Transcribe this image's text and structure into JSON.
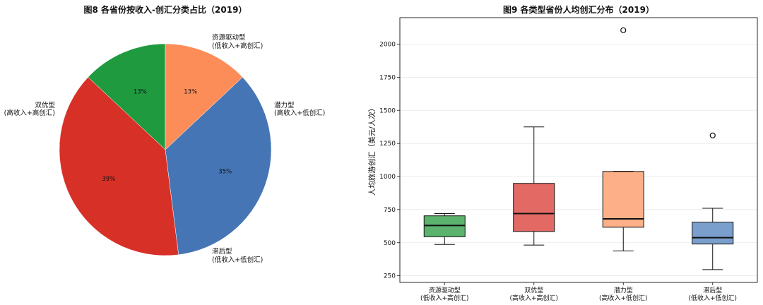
{
  "chart_data": [
    {
      "type": "pie",
      "title": "图8  各省份按收入-创汇分类占比（2019）",
      "start_angle_deg": 90,
      "direction": "counterclockwise",
      "slices": [
        {
          "label_line1": "资源驱动型",
          "label_line2": "(低收入+高创汇)",
          "pct_label": "13%",
          "value": 13,
          "color": "#1f9a3f"
        },
        {
          "label_line1": "双优型",
          "label_line2": "(高收入+高创汇)",
          "pct_label": "39%",
          "value": 39,
          "color": "#d73027"
        },
        {
          "label_line1": "滞后型",
          "label_line2": "(低收入+低创汇)",
          "pct_label": "35%",
          "value": 35,
          "color": "#4575b4"
        },
        {
          "label_line1": "潜力型",
          "label_line2": "(高收入+低创汇)",
          "pct_label": "13%",
          "value": 13,
          "color": "#fc8d59"
        }
      ]
    },
    {
      "type": "box",
      "title": "图9  各类型省份人均创汇分布（2019）",
      "ylabel": "人均旅游创汇（美元/人次）",
      "ylim": [
        200,
        2200
      ],
      "yticks": [
        250,
        500,
        750,
        1000,
        1250,
        1500,
        1750,
        2000
      ],
      "grid": "y",
      "boxes": [
        {
          "label_line1": "资源驱动型",
          "label_line2": "(低收入+高创汇)",
          "color": "#5cb36e",
          "whisker_low": 487,
          "q1": 545,
          "median": 630,
          "q3": 703,
          "whisker_high": 720,
          "outliers": []
        },
        {
          "label_line1": "双优型",
          "label_line2": "(高收入+高创汇)",
          "color": "#e36a64",
          "whisker_low": 482,
          "q1": 585,
          "median": 720,
          "q3": 948,
          "whisker_high": 1375,
          "outliers": []
        },
        {
          "label_line1": "潜力型",
          "label_line2": "(高收入+低创汇)",
          "color": "#fdb088",
          "whisker_low": 438,
          "q1": 617,
          "median": 680,
          "q3": 1038,
          "whisker_high": 1040,
          "outliers": [
            2105
          ]
        },
        {
          "label_line1": "滞后型",
          "label_line2": "(低收入+低创汇)",
          "color": "#7b9fcc",
          "whisker_low": 297,
          "q1": 490,
          "median": 538,
          "q3": 655,
          "whisker_high": 760,
          "outliers": [
            1310
          ]
        }
      ]
    }
  ]
}
